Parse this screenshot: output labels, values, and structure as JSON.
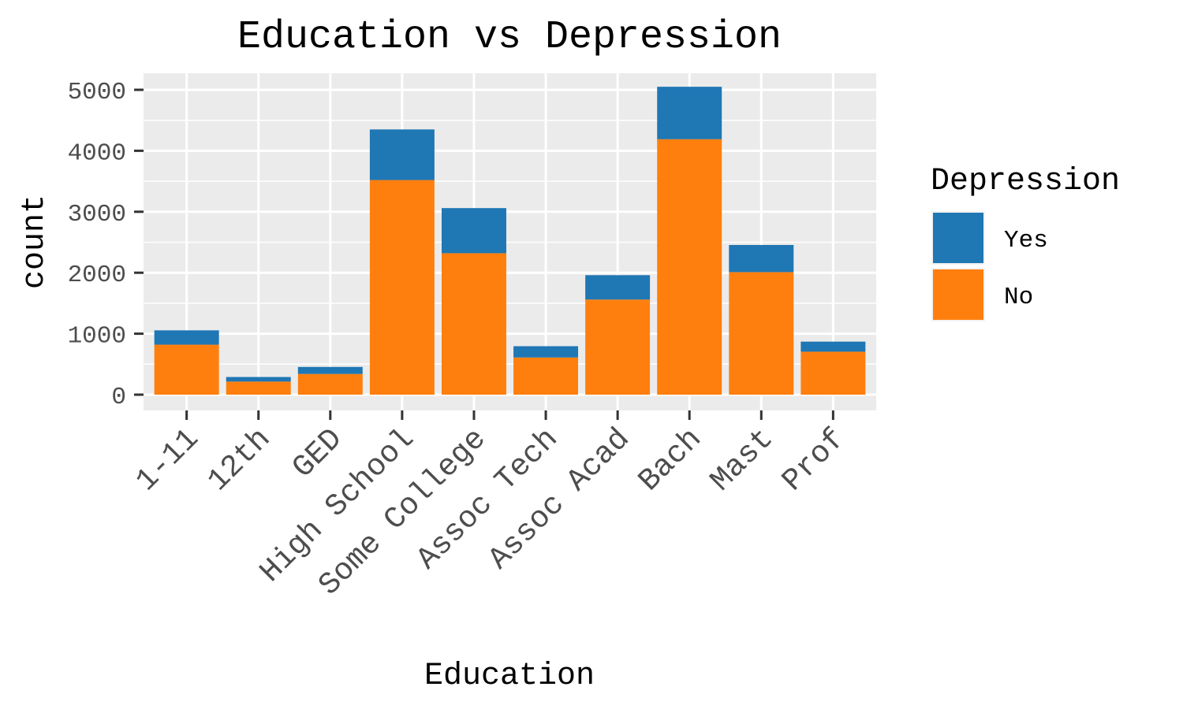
{
  "chart_data": {
    "type": "bar",
    "stacked": true,
    "title": "Education vs Depression",
    "xlabel": "Education",
    "ylabel": "count",
    "ylim": [
      0,
      5200
    ],
    "yticks": [
      "0",
      "1000",
      "2000",
      "3000",
      "4000",
      "5000"
    ],
    "ytick_values": [
      0,
      1000,
      2000,
      3000,
      4000,
      5000
    ],
    "categories": [
      "1-11",
      "12th",
      "GED",
      "High School",
      "Some College",
      "Assoc Tech",
      "Assoc Acad",
      "Bach",
      "Mast",
      "Prof"
    ],
    "series": [
      {
        "name": "No",
        "color": "#ff7f0e",
        "values": [
          820,
          215,
          340,
          3520,
          2320,
          610,
          1560,
          4190,
          2010,
          705
        ]
      },
      {
        "name": "Yes",
        "color": "#1f77b4",
        "values": [
          235,
          75,
          115,
          830,
          740,
          185,
          400,
          860,
          445,
          165
        ]
      }
    ],
    "legend": {
      "title": "Depression",
      "position": "right",
      "entries": [
        {
          "label": "Yes",
          "color": "#1f77b4"
        },
        {
          "label": "No",
          "color": "#ff7f0e"
        }
      ]
    },
    "grid": true,
    "panel_background": "#ebebeb",
    "grid_color": "#ffffff"
  }
}
